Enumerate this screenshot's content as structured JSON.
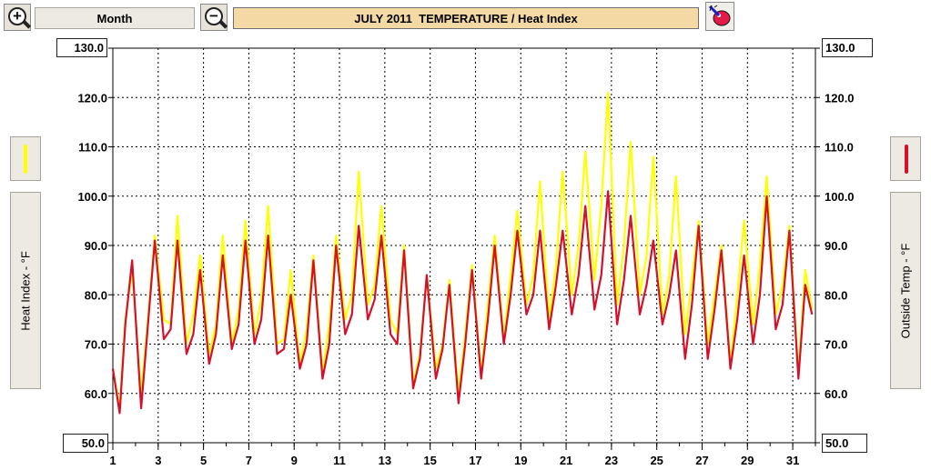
{
  "toolbar": {
    "zoom_in_icon": "zoom-in-magnifier",
    "zoom_out_icon": "zoom-out-magnifier",
    "period_label": "Month",
    "title": "JULY 2011  TEMPERATURE / Heat Index",
    "settings_icon": "paint-palette"
  },
  "axes": {
    "left_top_value": "130.0",
    "left_bottom_value": "50.0",
    "right_top_value": "130.0",
    "right_bottom_value": "50.0",
    "left_title": "Heat Index - °F",
    "right_title": "Outside Temp - °F"
  },
  "colors": {
    "heat_index": "#ffff00",
    "outside_temp": "#d4102a",
    "grid": "#000000"
  },
  "chart_data": {
    "type": "line",
    "title": "JULY 2011  TEMPERATURE / Heat Index",
    "xlabel": "",
    "ylabel": "Heat Index - °F",
    "ylabel_right": "Outside Temp - °F",
    "xlim": [
      1,
      32
    ],
    "ylim": [
      50,
      130
    ],
    "x_ticks": [
      "1",
      "3",
      "5",
      "7",
      "9",
      "11",
      "13",
      "15",
      "17",
      "19",
      "21",
      "23",
      "25",
      "27",
      "29",
      "31"
    ],
    "y_ticks": [
      "60.0",
      "70.0",
      "80.0",
      "90.0",
      "100.0",
      "110.0",
      "120.0"
    ],
    "grid": true,
    "x": [
      1,
      1.3,
      1.55,
      1.85,
      2.25,
      2.55,
      2.85,
      3.25,
      3.55,
      3.85,
      4.25,
      4.55,
      4.85,
      5.25,
      5.55,
      5.85,
      6.25,
      6.55,
      6.85,
      7.25,
      7.55,
      7.85,
      8.25,
      8.55,
      8.85,
      9.25,
      9.55,
      9.85,
      10.25,
      10.55,
      10.85,
      11.25,
      11.55,
      11.85,
      12.25,
      12.55,
      12.85,
      13.25,
      13.55,
      13.85,
      14.25,
      14.55,
      14.85,
      15.25,
      15.55,
      15.85,
      16.25,
      16.55,
      16.85,
      17.25,
      17.55,
      17.85,
      18.25,
      18.55,
      18.85,
      19.25,
      19.55,
      19.85,
      20.25,
      20.55,
      20.85,
      21.25,
      21.55,
      21.85,
      22.25,
      22.55,
      22.85,
      23.25,
      23.55,
      23.85,
      24.25,
      24.55,
      24.85,
      25.25,
      25.55,
      25.85,
      26.25,
      26.55,
      26.85,
      27.25,
      27.55,
      27.85,
      28.25,
      28.55,
      28.85,
      29.25,
      29.55,
      29.85,
      30.25,
      30.55,
      30.85,
      31.25,
      31.55,
      31.85
    ],
    "series": [
      {
        "name": "Heat Index",
        "color": "#ffff00",
        "values": [
          65,
          57,
          75,
          85,
          60,
          75,
          92,
          75,
          74,
          96,
          70,
          76,
          88,
          68,
          74,
          92,
          70,
          77,
          95,
          72,
          79,
          98,
          70,
          71,
          85,
          66,
          73,
          88,
          64,
          74,
          92,
          75,
          80,
          105,
          78,
          82,
          98,
          75,
          72,
          90,
          62,
          68,
          84,
          65,
          70,
          83,
          60,
          72,
          86,
          64,
          78,
          92,
          71,
          84,
          97,
          78,
          84,
          103,
          75,
          86,
          105,
          80,
          90,
          109,
          83,
          98,
          121,
          78,
          90,
          111,
          80,
          88,
          108,
          76,
          84,
          104,
          72,
          83,
          95,
          70,
          80,
          90,
          66,
          80,
          95,
          74,
          86,
          104,
          76,
          82,
          94,
          64,
          85,
          77
        ]
      },
      {
        "name": "Outside Temp",
        "color": "#d4102a",
        "values": [
          65,
          56,
          74,
          87,
          57,
          74,
          91,
          71,
          73,
          91,
          68,
          72,
          85,
          66,
          72,
          88,
          69,
          74,
          91,
          70,
          75,
          92,
          68,
          69,
          80,
          65,
          70,
          87,
          63,
          70,
          90,
          72,
          76,
          94,
          75,
          79,
          92,
          72,
          70,
          89,
          61,
          67,
          84,
          63,
          69,
          82,
          58,
          70,
          85,
          63,
          75,
          90,
          70,
          80,
          93,
          76,
          80,
          93,
          73,
          82,
          93,
          76,
          84,
          98,
          77,
          84,
          101,
          74,
          83,
          96,
          76,
          82,
          91,
          74,
          80,
          89,
          67,
          78,
          94,
          67,
          77,
          89,
          65,
          75,
          88,
          70,
          80,
          100,
          73,
          78,
          93,
          63,
          82,
          76
        ]
      }
    ]
  }
}
